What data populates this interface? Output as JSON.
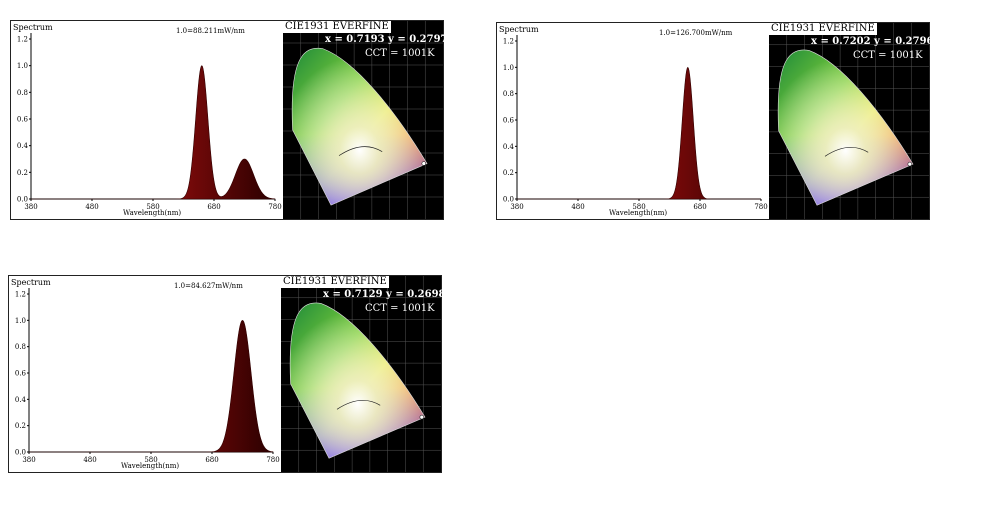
{
  "chart_data": [
    {
      "type": "area",
      "title": "Spectrum",
      "peak_label": "1.0=88.211mW/nm",
      "xlabel": "Wavelength(nm)",
      "xticks": [
        "380",
        "480",
        "580",
        "680",
        "780"
      ],
      "yticks": [
        "0.0",
        "0.2",
        "0.4",
        "0.6",
        "0.8",
        "1.0",
        "1.2"
      ],
      "xlim": [
        380,
        780
      ],
      "ylim": [
        0,
        1.2
      ],
      "peaks": [
        {
          "center": 660,
          "height": 1.0,
          "width": 10
        },
        {
          "center": 730,
          "height": 0.3,
          "width": 15
        }
      ],
      "cie": {
        "header": "CIE1931 EVERFINE",
        "xy": "x = 0.7193  y = 0.2797",
        "cct": "CCT = 1001K"
      }
    },
    {
      "type": "area",
      "title": "Spectrum",
      "peak_label": "1.0=126.700mW/nm",
      "xlabel": "Wavelength(nm)",
      "xticks": [
        "380",
        "480",
        "580",
        "680",
        "780"
      ],
      "yticks": [
        "0.0",
        "0.2",
        "0.4",
        "0.6",
        "0.8",
        "1.0",
        "1.2"
      ],
      "xlim": [
        380,
        780
      ],
      "ylim": [
        0,
        1.2
      ],
      "peaks": [
        {
          "center": 660,
          "height": 1.0,
          "width": 9
        }
      ],
      "cie": {
        "header": "CIE1931 EVERFINE",
        "xy": "x = 0.7202  y = 0.2796",
        "cct": "CCT = 1001K"
      }
    },
    {
      "type": "area",
      "title": "Spectrum",
      "peak_label": "1.0=84.627mW/nm",
      "xlabel": "Wavelength(nm)",
      "xticks": [
        "380",
        "480",
        "580",
        "680",
        "780"
      ],
      "yticks": [
        "0.0",
        "0.2",
        "0.4",
        "0.6",
        "0.8",
        "1.0",
        "1.2"
      ],
      "xlim": [
        380,
        780
      ],
      "ylim": [
        0,
        1.2
      ],
      "peaks": [
        {
          "center": 730,
          "height": 1.0,
          "width": 14
        }
      ],
      "cie": {
        "header": "CIE1931 EVERFINE",
        "xy": "x = 0.7129  y = 0.2698",
        "cct": "CCT = 1001K"
      }
    }
  ]
}
